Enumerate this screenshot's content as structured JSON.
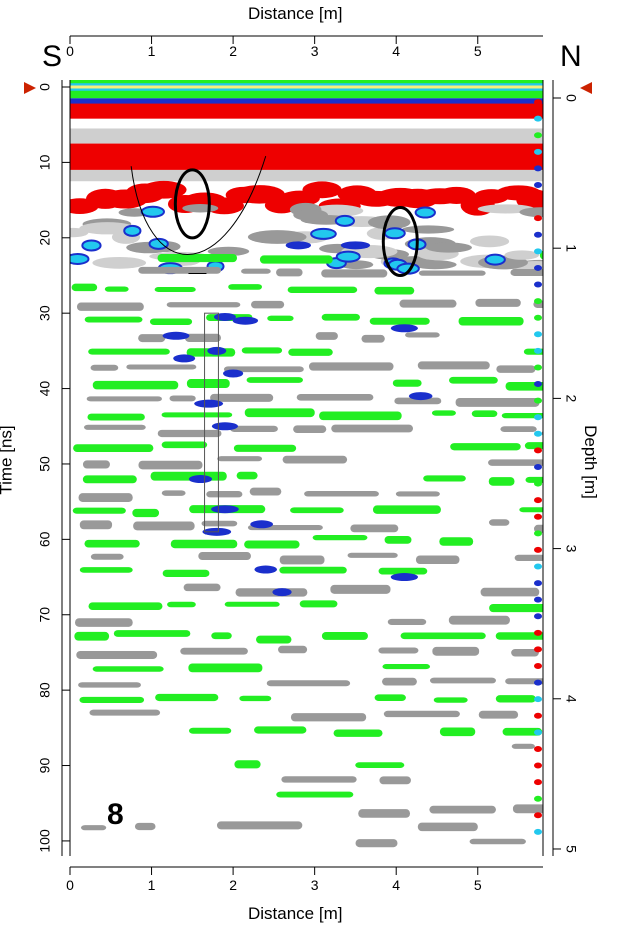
{
  "figure": {
    "direction_left": "S",
    "direction_right": "N",
    "panel_label": "8"
  },
  "chart_data": {
    "type": "heatmap",
    "title": "",
    "xlabel_top": "Distance [m]",
    "xlabel_bottom": "Distance [m]",
    "ylabel_left": "Time [ns]",
    "ylabel_right": "Depth [m]",
    "xlim": [
      0,
      5.8
    ],
    "ylim_time": [
      0,
      102
    ],
    "ylim_depth": [
      0,
      5.1
    ],
    "x_ticks": [
      0,
      1,
      2,
      3,
      4,
      5
    ],
    "time_ticks": [
      0,
      10,
      20,
      30,
      40,
      50,
      60,
      70,
      80,
      90,
      100
    ],
    "depth_ticks": [
      0,
      1,
      2,
      3,
      4,
      5
    ],
    "grid": false,
    "legend": "none",
    "colors": {
      "red": "#ee0000",
      "green": "#22ee22",
      "gray": "#999999",
      "light_gray": "#cfcfcf",
      "blue": "#1a2fcc",
      "cyan": "#22c8ee",
      "yellow": "#f5f07a"
    },
    "annotations": [
      {
        "type": "ellipse",
        "x": 1.5,
        "y": 15.5
      },
      {
        "type": "ellipse",
        "x": 4.05,
        "y": 20.5
      },
      {
        "type": "curve",
        "x_from": 0.75,
        "x_to": 2.4,
        "y_top": 10.5,
        "y_bottom": 25
      },
      {
        "type": "rectangle",
        "x": [
          1.65,
          1.82
        ],
        "y": [
          30,
          59
        ]
      }
    ]
  }
}
